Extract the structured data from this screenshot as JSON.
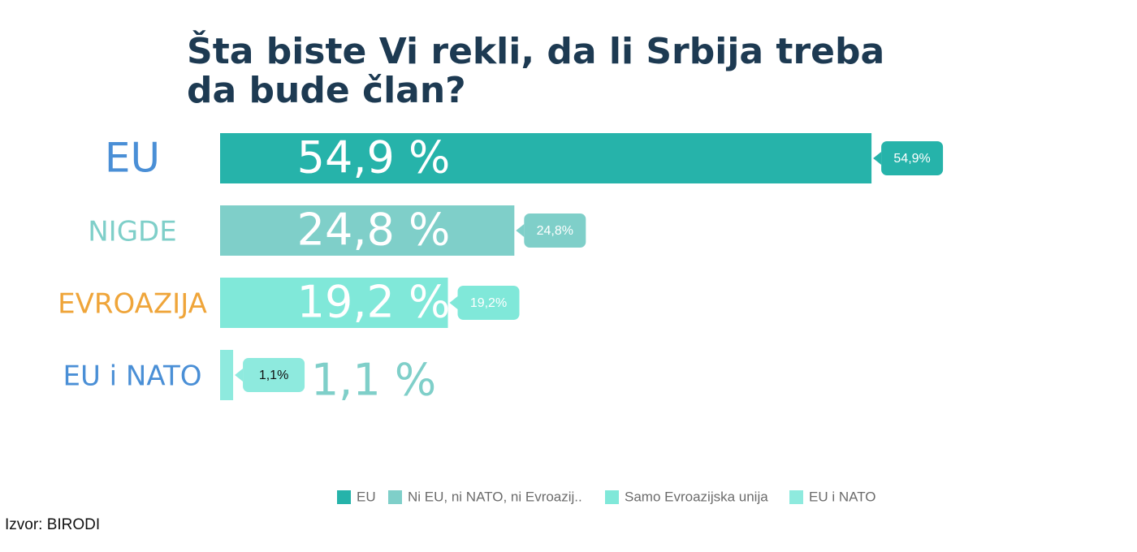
{
  "chart_data": {
    "type": "hbar",
    "title": [
      "Šta biste Vi rekli, da li Srbija treba",
      "da bude član?"
    ],
    "categories": [
      "EU",
      "NIGDE",
      "EVROAZIJA",
      "EU i NATO"
    ],
    "category_colors": [
      "#4a8fd6",
      "#7fcfc9",
      "#efa53a",
      "#4a8fd6"
    ],
    "values": [
      54.9,
      24.8,
      19.2,
      1.1
    ],
    "colors": [
      "#26b3aa",
      "#7fcfc9",
      "#80e8d9",
      "#8eeade"
    ],
    "big_labels": [
      "54,9 %",
      "24,8 %",
      "19,2 %",
      "1,1 %"
    ],
    "value_labels": [
      "54,9%",
      "24,8%",
      "19,2%",
      "1,1%"
    ],
    "legend": [
      "EU",
      "Ni EU, ni NATO, ni Evroazij..",
      "Samo Evroazijska unija",
      "EU i NATO"
    ],
    "source": "Izvor: BIRODI"
  }
}
